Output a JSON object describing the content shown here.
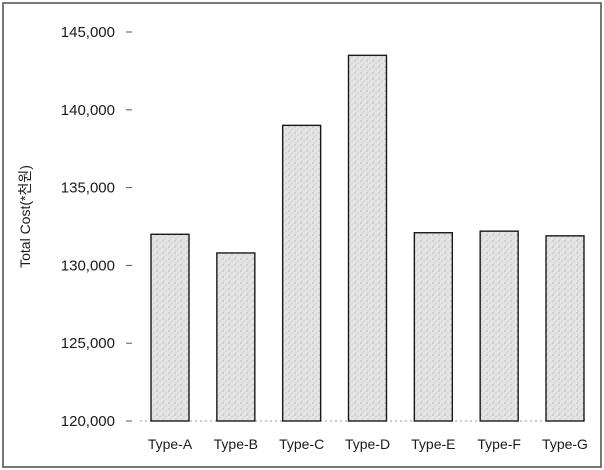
{
  "chart_data": {
    "type": "bar",
    "title": "",
    "xlabel": "",
    "ylabel": "Total Cost(*천원)",
    "categories": [
      "Type-A",
      "Type-B",
      "Type-C",
      "Type-D",
      "Type-E",
      "Type-F",
      "Type-G"
    ],
    "values": [
      132000,
      130800,
      139000,
      143500,
      132100,
      132200,
      131900
    ],
    "ylim": [
      120000,
      145000
    ],
    "yticks": [
      120000,
      125000,
      130000,
      135000,
      140000,
      145000
    ],
    "ytick_labels": [
      "120,000",
      "125,000",
      "130,000",
      "135,000",
      "140,000",
      "145,000"
    ],
    "grid": false,
    "legend": "none",
    "bar_fill": "#dcdcdc",
    "bar_stroke": "#1a1a1a",
    "border_color": "#4a4a4a"
  }
}
